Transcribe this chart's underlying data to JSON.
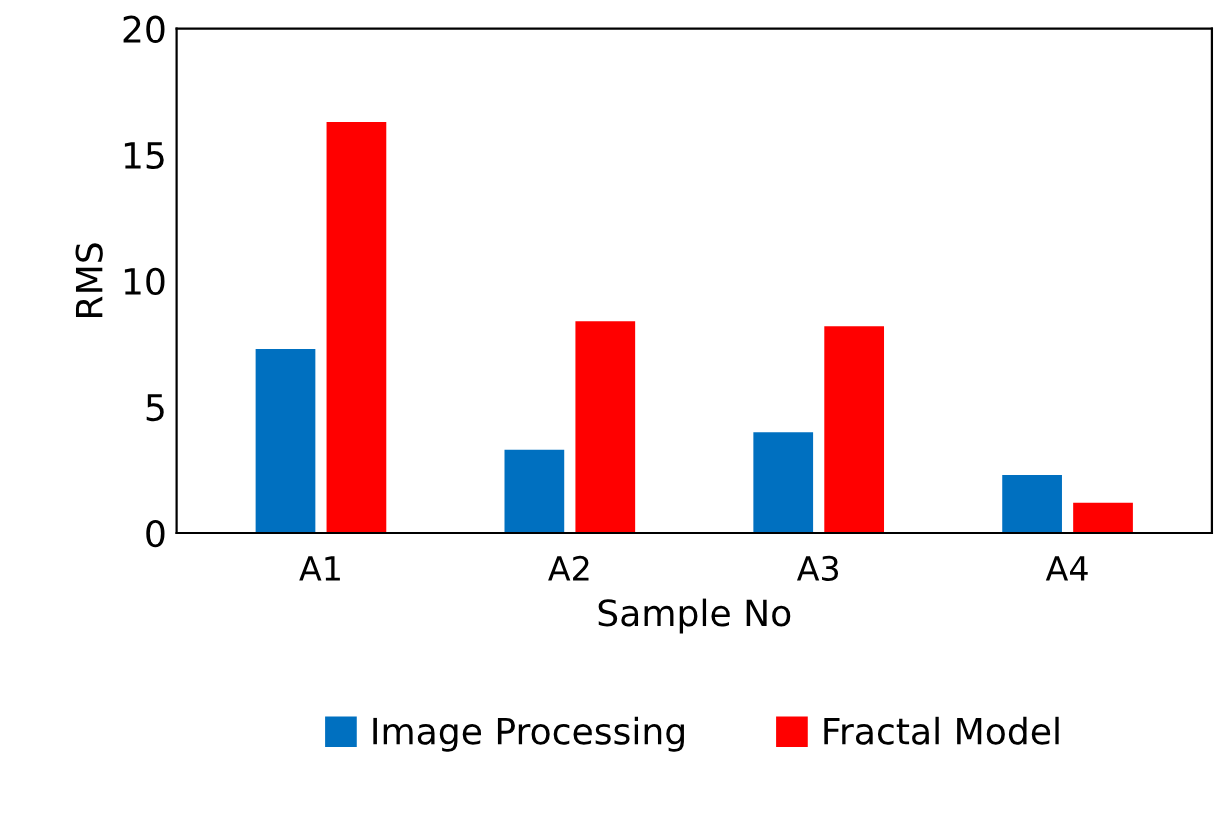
{
  "chart_data": {
    "type": "bar",
    "xlabel": "Sample No",
    "ylabel": "RMS",
    "categories": [
      "A1",
      "A2",
      "A3",
      "A4"
    ],
    "series": [
      {
        "name": "Image Processing",
        "color": "#0070c0",
        "values": [
          7.3,
          3.3,
          4.0,
          2.3
        ]
      },
      {
        "name": "Fractal Model",
        "color": "#ff0000",
        "values": [
          16.3,
          8.4,
          8.2,
          1.2
        ]
      }
    ],
    "ylim": [
      0,
      20
    ],
    "yticks": [
      0,
      5,
      10,
      15,
      20
    ],
    "grid": false,
    "legend": "bottom"
  }
}
